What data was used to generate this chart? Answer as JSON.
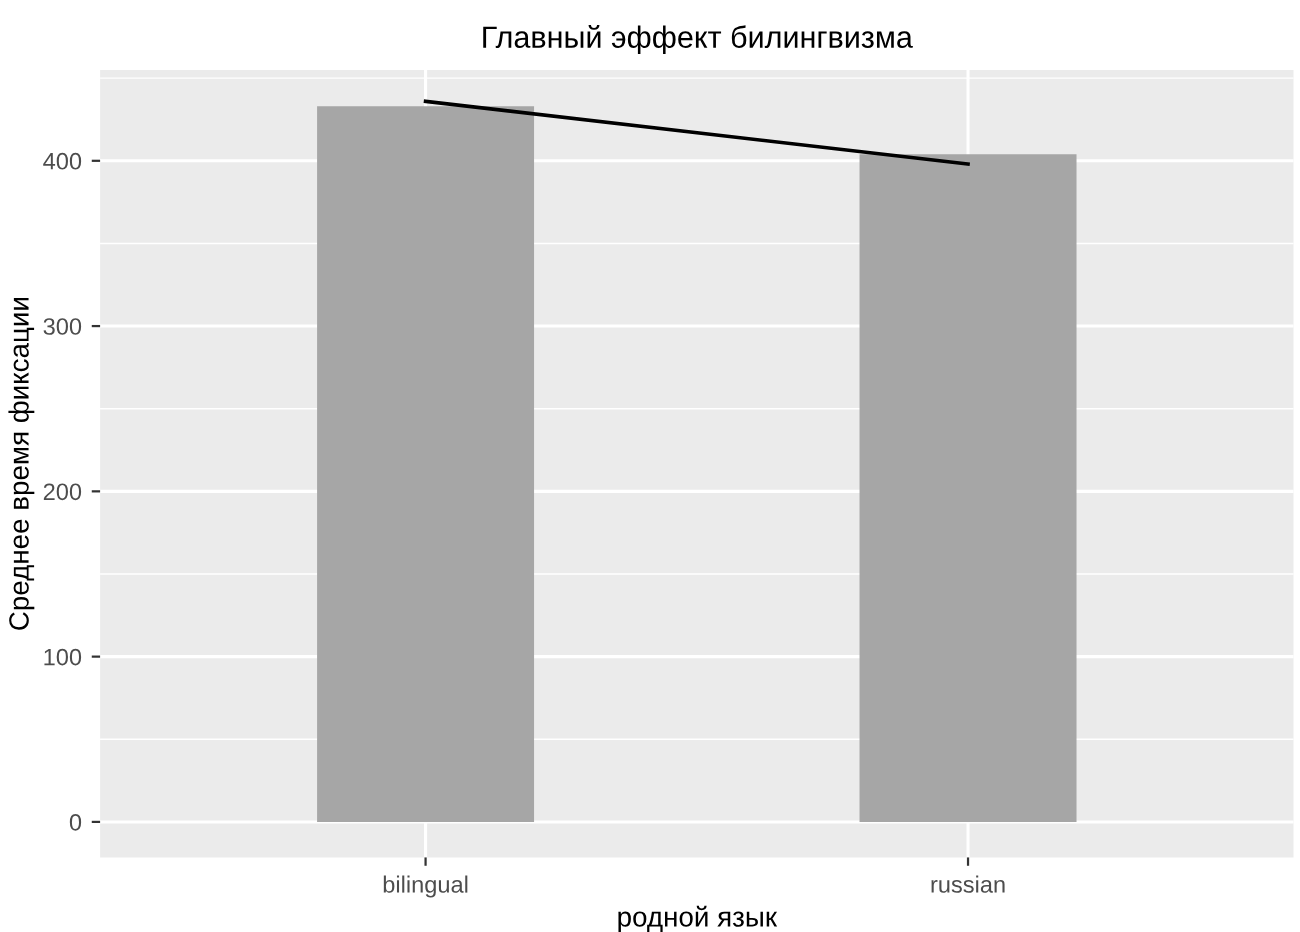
{
  "chart_data": {
    "type": "bar",
    "title": "Главный эффект билингвизма",
    "xlabel": "родной язык",
    "ylabel": "Среднее время фиксации",
    "categories": [
      "bilingual",
      "russian"
    ],
    "series": [
      {
        "color": "#a6a6a6",
        "values": [
          433,
          404
        ]
      },
      {
        "type": "line",
        "color": "#000000",
        "values": [
          436,
          398
        ]
      }
    ],
    "ylim": [
      -21.5,
      455
    ],
    "yticks": [
      0,
      100,
      200,
      300,
      400
    ],
    "grid": true,
    "legend": false
  }
}
